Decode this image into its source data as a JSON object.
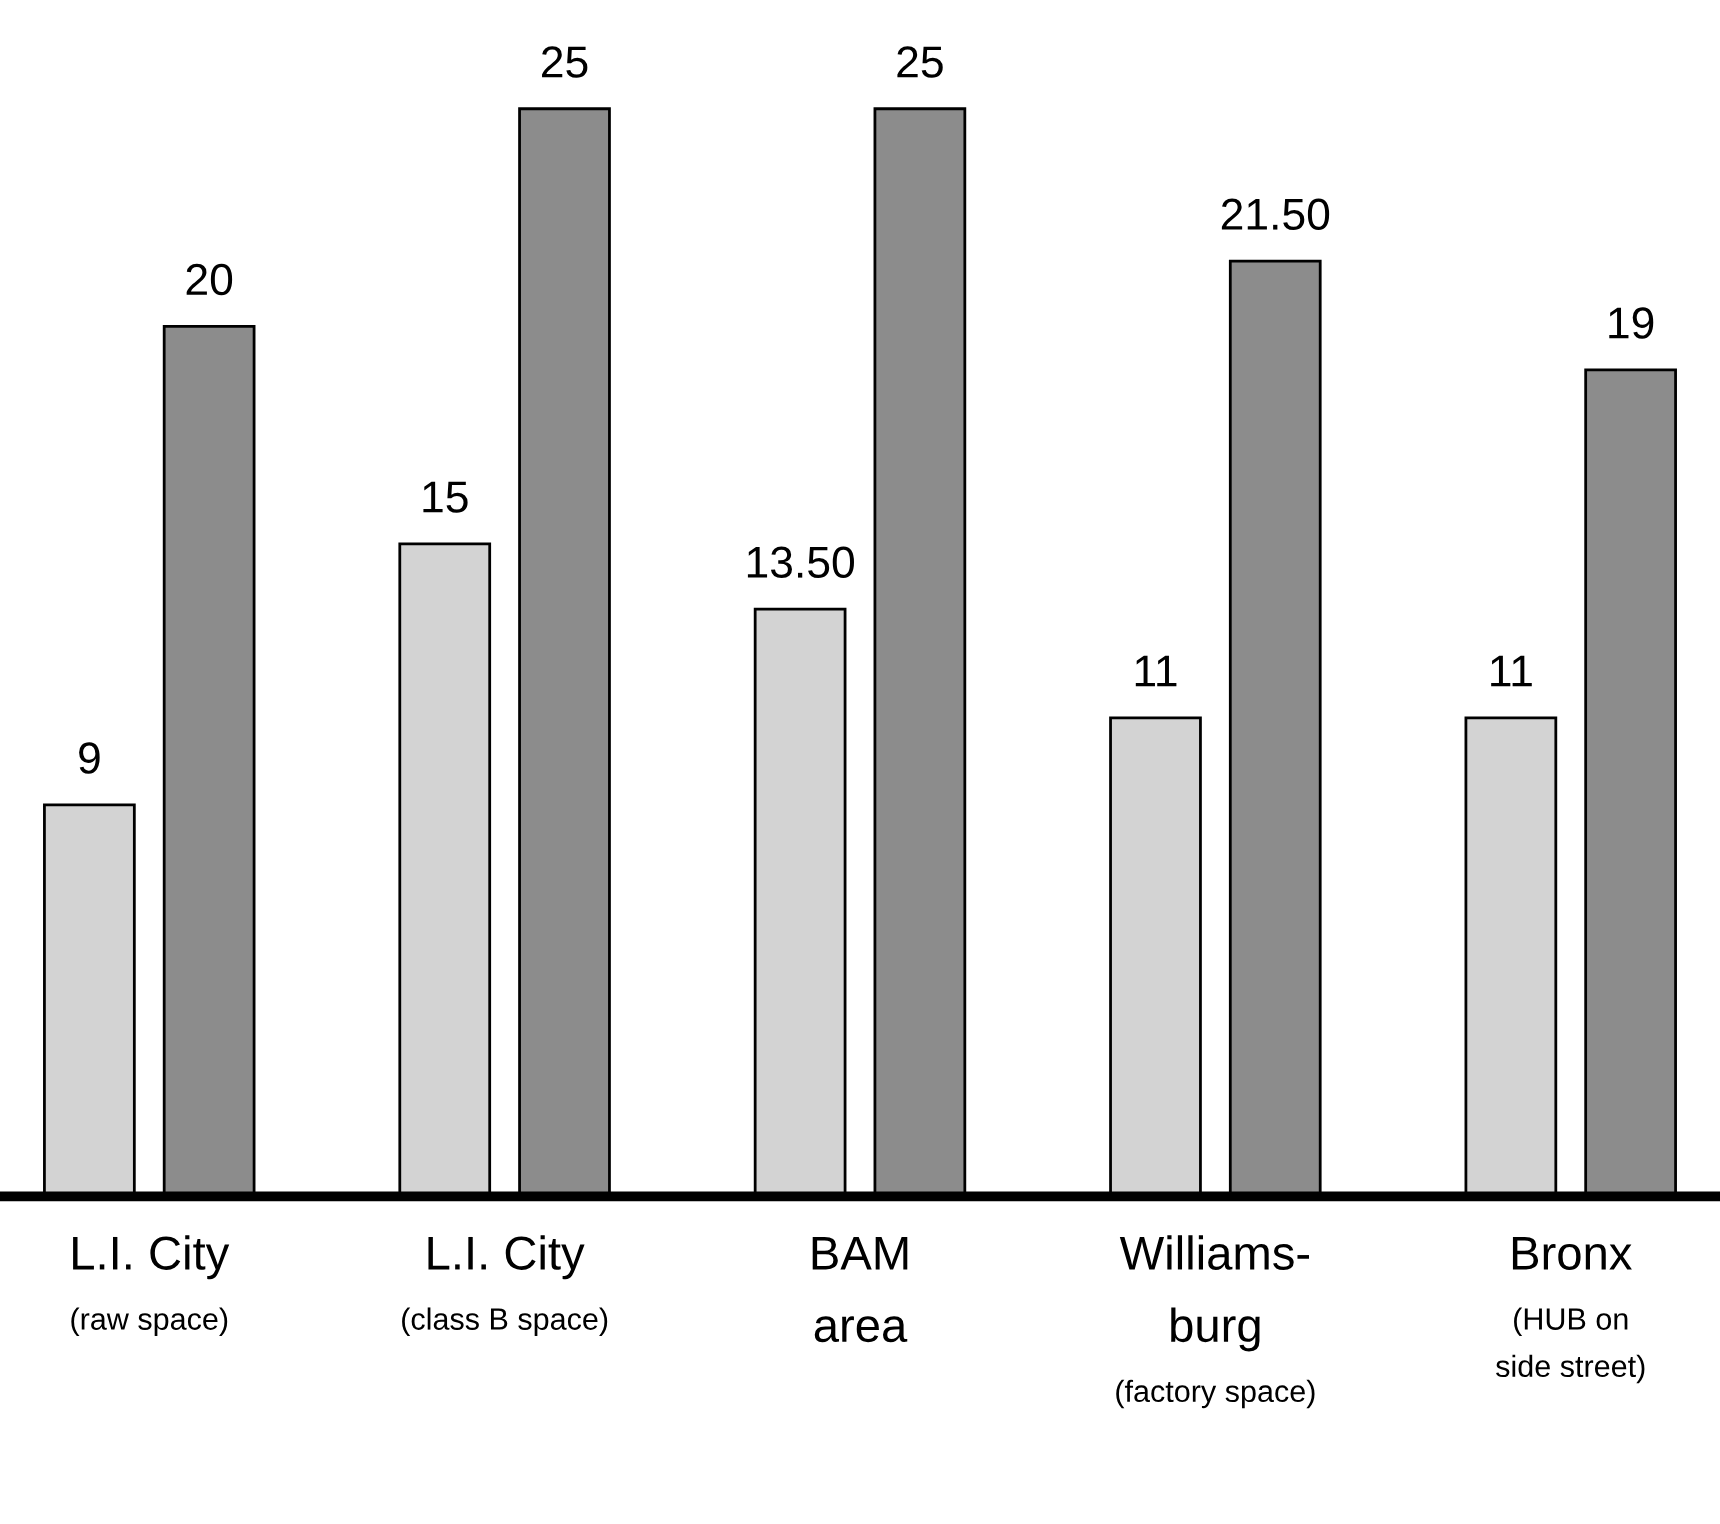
{
  "chart_data": {
    "type": "bar",
    "categories": [
      "L.I. City\n(raw space)",
      "L.I. City\n(class B space)",
      "BAM\narea",
      "Williams-\nburg\n(factory space)",
      "Bronx\n(HUB on\nside street)"
    ],
    "series": [
      {
        "color": "#d3d3d3",
        "values": [
          9,
          15,
          13.5,
          11,
          11
        ],
        "value_labels": [
          "9",
          "15",
          "13.50",
          "11",
          "11"
        ]
      },
      {
        "color": "#8c8c8c",
        "values": [
          20,
          25,
          25,
          21.5,
          19
        ],
        "value_labels": [
          "20",
          "25",
          "25",
          "21.50",
          "19"
        ]
      }
    ]
  }
}
